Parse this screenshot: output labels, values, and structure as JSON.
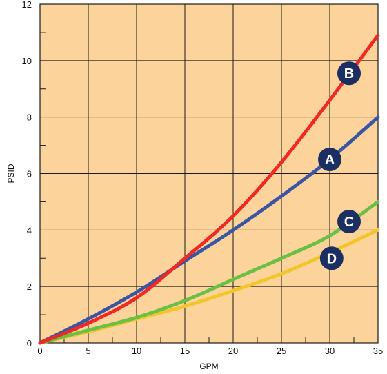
{
  "chart_data": {
    "type": "line",
    "title": "",
    "xlabel": "GPM",
    "ylabel": "PSID",
    "xlim": [
      0,
      35
    ],
    "ylim": [
      0,
      12
    ],
    "x_ticks": [
      0,
      5,
      10,
      15,
      20,
      25,
      30,
      35
    ],
    "y_ticks": [
      0,
      2,
      4,
      6,
      8,
      10,
      12
    ],
    "x_tick_labels": [
      "0",
      "5",
      "10",
      "15",
      "20",
      "25",
      "30",
      "35"
    ],
    "y_tick_labels": [
      "0",
      "2",
      "4",
      "6",
      "8",
      "10",
      "12"
    ],
    "grid": true,
    "plot_background": "#fcd49b",
    "series": [
      {
        "name": "A",
        "color": "#3a55a4",
        "x": [
          0,
          5,
          10,
          15,
          20,
          25,
          30,
          35
        ],
        "y": [
          0,
          0.85,
          1.8,
          2.9,
          4.0,
          5.2,
          6.5,
          8.0
        ],
        "label_at": [
          30,
          6.5
        ]
      },
      {
        "name": "B",
        "color": "#ee2a24",
        "x": [
          0,
          5,
          10,
          15,
          20,
          25,
          30,
          35
        ],
        "y": [
          0,
          0.7,
          1.6,
          3.0,
          4.5,
          6.4,
          8.6,
          10.9
        ],
        "label_at": [
          32,
          9.55
        ]
      },
      {
        "name": "C",
        "color": "#6abf45",
        "x": [
          0,
          5,
          10,
          15,
          20,
          25,
          30,
          35
        ],
        "y": [
          0,
          0.45,
          0.9,
          1.5,
          2.25,
          3.0,
          3.8,
          5.0
        ],
        "label_at": [
          32,
          4.3
        ]
      },
      {
        "name": "D",
        "color": "#f2c62b",
        "x": [
          0,
          5,
          10,
          15,
          20,
          25,
          30,
          35
        ],
        "y": [
          0,
          0.4,
          0.85,
          1.3,
          1.85,
          2.45,
          3.2,
          4.0
        ],
        "label_at": [
          30.2,
          3.0
        ]
      }
    ],
    "label_badge_color": "#1b2f63"
  }
}
